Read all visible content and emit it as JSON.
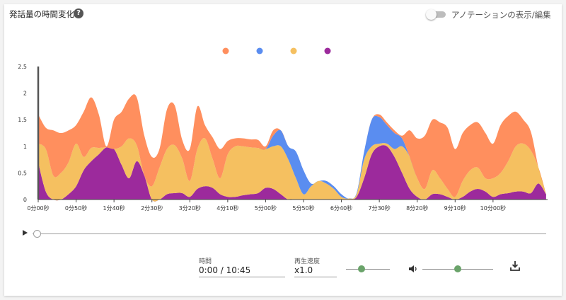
{
  "header": {
    "title": "発話量の時間変化",
    "toggle_label": "アノテーションの表示/編集",
    "toggle_on": false
  },
  "chart_data": {
    "type": "area",
    "stacked": true,
    "legend_position": "top-center",
    "ylim": [
      0,
      2.5
    ],
    "yticks": [
      "0",
      "0.5",
      "1",
      "1.5",
      "2",
      "2.5"
    ],
    "x_range_seconds": [
      0,
      672
    ],
    "x_tick_labels": [
      "0分00秒",
      "0分50秒",
      "1分40秒",
      "2分30秒",
      "3分20秒",
      "4分10秒",
      "5分00秒",
      "5分50秒",
      "6分40秒",
      "7分30秒",
      "8分20秒",
      "9分10秒",
      "10分00秒"
    ],
    "x": [
      0,
      10,
      20,
      30,
      40,
      50,
      60,
      70,
      80,
      90,
      100,
      110,
      120,
      130,
      140,
      150,
      160,
      170,
      180,
      190,
      200,
      210,
      220,
      230,
      240,
      250,
      260,
      270,
      280,
      290,
      300,
      310,
      320,
      330,
      340,
      350,
      360,
      370,
      380,
      390,
      400,
      410,
      420,
      430,
      440,
      450,
      460,
      470,
      480,
      490,
      500,
      510,
      520,
      530,
      540,
      550,
      560,
      570,
      580,
      590,
      600,
      610,
      620,
      630,
      640,
      650,
      660,
      670
    ],
    "series": [
      {
        "color": "#9c2a9c",
        "values": [
          0.7,
          0.15,
          0,
          0,
          0.1,
          0.25,
          0.55,
          0.72,
          0.85,
          0.98,
          0.95,
          0.65,
          0.4,
          0.72,
          0.45,
          0,
          0,
          0.1,
          0.12,
          0.12,
          0.05,
          0.2,
          0.25,
          0.22,
          0.1,
          0.05,
          0.05,
          0.08,
          0.1,
          0.12,
          0.22,
          0.2,
          0.1,
          0,
          0,
          0,
          0,
          0,
          0,
          0,
          0,
          0,
          0.05,
          0.4,
          0.85,
          1.0,
          1.0,
          0.8,
          0.5,
          0.2,
          0.05,
          0,
          0.1,
          0.1,
          0.05,
          0,
          0.05,
          0.15,
          0.2,
          0.15,
          0.05,
          0.1,
          0.12,
          0.15,
          0.15,
          0.12,
          0.3,
          0.1
        ]
      },
      {
        "color": "#f5c060",
        "values": [
          0.35,
          0.8,
          0.45,
          0.5,
          0.6,
          0.8,
          0.25,
          0.25,
          0.12,
          0,
          0,
          0.35,
          0.75,
          0.3,
          0,
          0.25,
          0.6,
          0.85,
          0.9,
          0.65,
          0.3,
          0.75,
          0.9,
          0.55,
          0.3,
          0.8,
          0.95,
          0.92,
          0.88,
          0.85,
          0.73,
          0.8,
          0.9,
          0.75,
          0.4,
          0.1,
          0.25,
          0.35,
          0.3,
          0.2,
          0.05,
          0.02,
          0.05,
          0.35,
          0.15,
          0.05,
          0.05,
          0.15,
          0.5,
          0.6,
          0.35,
          0.2,
          0.45,
          0.3,
          0.15,
          0.05,
          0.3,
          0.4,
          0.4,
          0.25,
          0.35,
          0.4,
          0.6,
          0.85,
          0.9,
          0.8,
          0.3,
          0
        ]
      },
      {
        "color": "#5a8df0",
        "values": [
          0,
          0,
          0,
          0,
          0,
          0,
          0,
          0,
          0,
          0,
          0,
          0,
          0,
          0,
          0,
          0,
          0,
          0,
          0,
          0,
          0,
          0,
          0,
          0,
          0,
          0,
          0,
          0,
          0,
          0,
          0,
          0.2,
          0.3,
          0.25,
          0.5,
          0.45,
          0.05,
          0,
          0.05,
          0.05,
          0.05,
          0,
          0.02,
          0.15,
          0.5,
          0.5,
          0.35,
          0.3,
          0.15,
          0,
          0,
          0,
          0,
          0,
          0,
          0,
          0,
          0,
          0,
          0,
          0,
          0,
          0,
          0,
          0,
          0,
          0,
          0
        ]
      },
      {
        "color": "#ff8f5e",
        "values": [
          0.55,
          0.4,
          0.85,
          0.75,
          0.6,
          0.35,
          0.85,
          0.95,
          0.63,
          0.02,
          0.55,
          0.65,
          0.75,
          0.9,
          0.75,
          0.55,
          0.35,
          0.75,
          0.75,
          0.35,
          0.6,
          0.8,
          0.25,
          0.4,
          0.55,
          0.25,
          0.15,
          0.15,
          0.15,
          0.15,
          0.05,
          0.1,
          0,
          0,
          0,
          0,
          0,
          0,
          0,
          0,
          0,
          0,
          0,
          0,
          0,
          0.05,
          0.05,
          0.05,
          0.05,
          0.5,
          0.75,
          1.0,
          0.95,
          1.05,
          1.15,
          0.9,
          0.9,
          0.85,
          0.85,
          0.85,
          0.65,
          0.9,
          0.85,
          0.65,
          0.45,
          0.35,
          0,
          0
        ]
      }
    ]
  },
  "player": {
    "time_label": "時間",
    "time_value": "0:00 / 10:45",
    "speed_label": "再生速度",
    "speed_value": "x1.0",
    "speed_level": 0.35,
    "volume_level": 0.5
  },
  "icons": {
    "help": "help-icon",
    "volume": "volume-icon",
    "download": "download-icon",
    "play": "play-icon"
  }
}
